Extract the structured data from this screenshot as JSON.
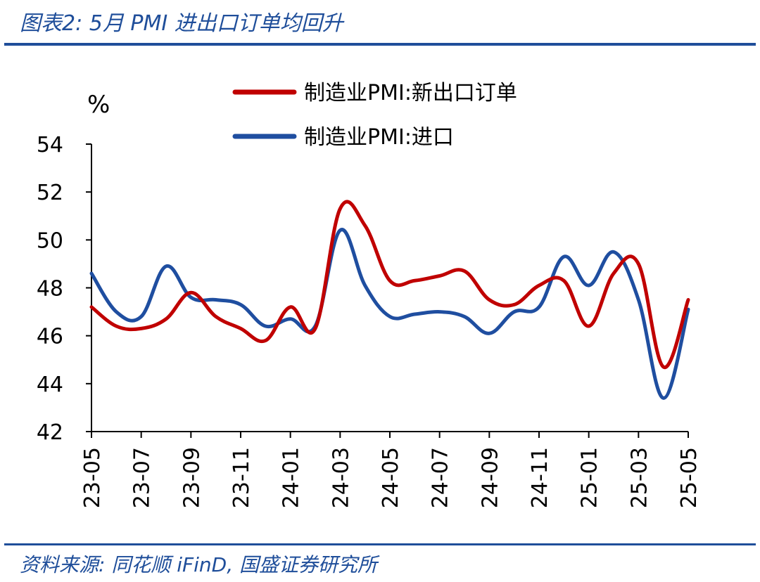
{
  "header": {
    "title": "图表2:  5月 PMI 进出口订单均回升"
  },
  "footer": {
    "source": "资料来源: 同花顺 iFinD, 国盛证券研究所"
  },
  "chart_data": {
    "type": "line",
    "unit_label": "%",
    "x": [
      "23-05",
      "23-06",
      "23-07",
      "23-08",
      "23-09",
      "23-10",
      "23-11",
      "23-12",
      "24-01",
      "24-02",
      "24-03",
      "24-04",
      "24-05",
      "24-06",
      "24-07",
      "24-08",
      "24-09",
      "24-10",
      "24-11",
      "24-12",
      "25-01",
      "25-02",
      "25-03",
      "25-04",
      "25-05"
    ],
    "x_tick_labels": [
      "23-05",
      "23-07",
      "23-09",
      "23-11",
      "24-01",
      "24-03",
      "24-05",
      "24-07",
      "24-09",
      "24-11",
      "25-01",
      "25-03",
      "25-05"
    ],
    "ylim": [
      42,
      54
    ],
    "y_ticks": [
      42,
      44,
      46,
      48,
      50,
      52,
      54
    ],
    "grid": false,
    "legend_position": "top-center",
    "series": [
      {
        "name": "制造业PMI:新出口订单",
        "color": "#c00000",
        "values": [
          47.2,
          46.4,
          46.3,
          46.7,
          47.8,
          46.8,
          46.3,
          45.8,
          47.2,
          46.3,
          51.3,
          50.6,
          48.3,
          48.3,
          48.5,
          48.7,
          47.5,
          47.3,
          48.1,
          48.3,
          46.4,
          48.6,
          49.0,
          44.7,
          47.5
        ]
      },
      {
        "name": "制造业PMI:进口",
        "color": "#1f4ea0",
        "values": [
          48.6,
          47.0,
          46.8,
          48.9,
          47.6,
          47.5,
          47.3,
          46.4,
          46.7,
          46.4,
          50.4,
          48.1,
          46.8,
          46.9,
          47.0,
          46.8,
          46.1,
          47.0,
          47.2,
          49.3,
          48.1,
          49.5,
          47.5,
          43.4,
          47.1
        ]
      }
    ]
  }
}
